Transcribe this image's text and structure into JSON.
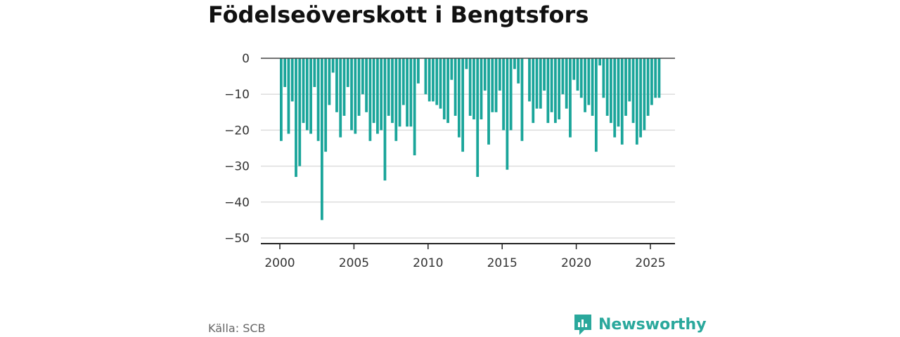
{
  "title": "Födelseöverskott i Bengtsfors",
  "source": "Källa: SCB",
  "brand": "Newsworthy",
  "colors": {
    "bar": "#1aa59a",
    "brand": "#2aa89c",
    "grid": "#dddddd",
    "axis": "#222222"
  },
  "chart_data": {
    "type": "bar",
    "title": "Födelseöverskott i Bengtsfors",
    "xlabel": "",
    "ylabel": "",
    "ylim": [
      -50,
      0
    ],
    "yticks": [
      0,
      -10,
      -20,
      -30,
      -40,
      -50
    ],
    "ytick_labels": [
      "0",
      "−10",
      "−20",
      "−30",
      "−40",
      "−50"
    ],
    "xlim": [
      2000.0,
      2025.8
    ],
    "xticks": [
      2000,
      2005,
      2010,
      2015,
      2020,
      2025
    ],
    "grid": true,
    "start": "2000-01",
    "frequency": "monthly, one bar per quarter",
    "values": [
      -23,
      -8,
      -21,
      -12,
      -33,
      -30,
      -18,
      -20,
      -21,
      -8,
      -23,
      -45,
      -26,
      -13,
      -4,
      -15,
      -22,
      -16,
      -8,
      -20,
      -21,
      -16,
      -10,
      -15,
      -23,
      -18,
      -21,
      -20,
      -34,
      -16,
      -18,
      -23,
      -19,
      -13,
      -19,
      -19,
      -27,
      -7,
      0,
      -10,
      -12,
      -12,
      -13,
      -14,
      -17,
      -18,
      -6,
      -16,
      -22,
      -26,
      -3,
      -16,
      -17,
      -33,
      -17,
      -9,
      -24,
      -15,
      -15,
      -9,
      -20,
      -31,
      -20,
      -3,
      -7,
      -23,
      0,
      -12,
      -18,
      -14,
      -14,
      -9,
      -18,
      -15,
      -18,
      -17,
      -10,
      -14,
      -22,
      -6,
      -9,
      -11,
      -15,
      -13,
      -16,
      -26,
      -2,
      -11,
      -16,
      -18,
      -22,
      -19,
      -24,
      -16,
      -12,
      -18,
      -24,
      -22,
      -20,
      -16,
      -13,
      -11,
      -11
    ]
  }
}
